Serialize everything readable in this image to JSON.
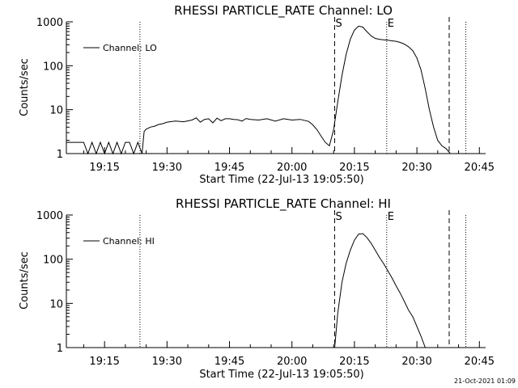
{
  "timestamp": "21-Oct-2021 01:09",
  "chart_data": [
    {
      "type": "line",
      "title": "RHESSI PARTICLE_RATE Channel: LO",
      "xlabel": "Start Time (22-Jul-13 19:05:50)",
      "ylabel": "Counts/sec",
      "yscale": "log",
      "ylim": [
        1,
        1000
      ],
      "xlim": [
        "19:05:50",
        "20:46:30"
      ],
      "xticks": [
        "19:15",
        "19:30",
        "19:45",
        "20:00",
        "20:15",
        "20:30",
        "20:45"
      ],
      "yticks": [
        "1",
        "10",
        "100",
        "1000"
      ],
      "legend": "top-left",
      "series": [
        {
          "name": "Channel: LO",
          "x": [
            "19:05:50",
            "19:10",
            "19:11",
            "19:12",
            "19:13",
            "19:14",
            "19:15",
            "19:16",
            "19:17",
            "19:18",
            "19:19",
            "19:20",
            "19:21",
            "19:22",
            "19:23",
            "19:24",
            "19:24:30",
            "19:25",
            "19:26",
            "19:27",
            "19:28",
            "19:29",
            "19:30",
            "19:32",
            "19:34",
            "19:36",
            "19:37",
            "19:38",
            "19:39",
            "19:40",
            "19:41",
            "19:42",
            "19:43",
            "19:44",
            "19:45",
            "19:46",
            "19:47",
            "19:48",
            "19:49",
            "19:50",
            "19:52",
            "19:54",
            "19:56",
            "19:58",
            "20:00",
            "20:02",
            "20:04",
            "20:05",
            "20:06",
            "20:07",
            "20:08",
            "20:09",
            "20:10",
            "20:11",
            "20:12",
            "20:13",
            "20:14",
            "20:15",
            "20:16",
            "20:17",
            "20:18",
            "20:19",
            "20:20",
            "20:21",
            "20:22",
            "20:23",
            "20:24",
            "20:25",
            "20:26",
            "20:27",
            "20:28",
            "20:29",
            "20:30",
            "20:31",
            "20:32",
            "20:33",
            "20:34",
            "20:35",
            "20:36",
            "20:37",
            "20:38",
            "20:39"
          ],
          "y": [
            1.8,
            1.8,
            1,
            1.8,
            1,
            1.8,
            1,
            1.8,
            1,
            1.8,
            1,
            1.8,
            1.8,
            1,
            1.8,
            1,
            3.2,
            3.6,
            4,
            4.2,
            4.6,
            4.8,
            5.2,
            5.5,
            5.3,
            5.8,
            6.5,
            5.2,
            6,
            6.2,
            5,
            6.4,
            5.6,
            6.2,
            6.2,
            6,
            5.9,
            5.5,
            6.3,
            6,
            5.8,
            6.2,
            5.5,
            6.2,
            5.8,
            6,
            5.4,
            4.5,
            3.5,
            2.5,
            1.8,
            1.5,
            3.5,
            15,
            60,
            180,
            400,
            650,
            800,
            760,
            600,
            480,
            420,
            400,
            390,
            380,
            370,
            360,
            340,
            310,
            270,
            220,
            150,
            80,
            30,
            10,
            4,
            2,
            1.5,
            1.3,
            1,
            1
          ]
        }
      ],
      "annotations": [
        {
          "label": "S",
          "x": "20:10:15"
        },
        {
          "label": "E",
          "x": "20:22:45"
        }
      ],
      "dotted_lines_x": [
        "19:23:30",
        "20:22:45",
        "20:41:45"
      ],
      "dashed_lines_x": [
        "20:10:15",
        "20:37:45"
      ]
    },
    {
      "type": "line",
      "title": "RHESSI PARTICLE_RATE Channel: HI",
      "xlabel": "Start Time (22-Jul-13 19:05:50)",
      "ylabel": "Counts/sec",
      "yscale": "log",
      "ylim": [
        1,
        1000
      ],
      "xlim": [
        "19:05:50",
        "20:46:30"
      ],
      "xticks": [
        "19:15",
        "19:30",
        "19:45",
        "20:00",
        "20:15",
        "20:30",
        "20:45"
      ],
      "yticks": [
        "1",
        "10",
        "100",
        "1000"
      ],
      "legend": "top-left",
      "series": [
        {
          "name": "Channel: HI",
          "x": [
            "20:10:15",
            "20:11",
            "20:12",
            "20:13",
            "20:14",
            "20:15",
            "20:16",
            "20:17",
            "20:18",
            "20:19",
            "20:20",
            "20:21",
            "20:22",
            "20:23",
            "20:24",
            "20:25",
            "20:26",
            "20:27",
            "20:28",
            "20:29",
            "20:30",
            "20:31",
            "20:32"
          ],
          "y": [
            1,
            6,
            30,
            80,
            160,
            270,
            370,
            380,
            310,
            230,
            160,
            110,
            80,
            55,
            38,
            25,
            17,
            11,
            7,
            5,
            3,
            1.8,
            1
          ]
        }
      ],
      "annotations": [
        {
          "label": "S",
          "x": "20:10:15"
        },
        {
          "label": "E",
          "x": "20:22:45"
        }
      ],
      "dotted_lines_x": [
        "19:23:30",
        "20:22:45",
        "20:41:45"
      ],
      "dashed_lines_x": [
        "20:10:15",
        "20:37:45"
      ]
    }
  ]
}
